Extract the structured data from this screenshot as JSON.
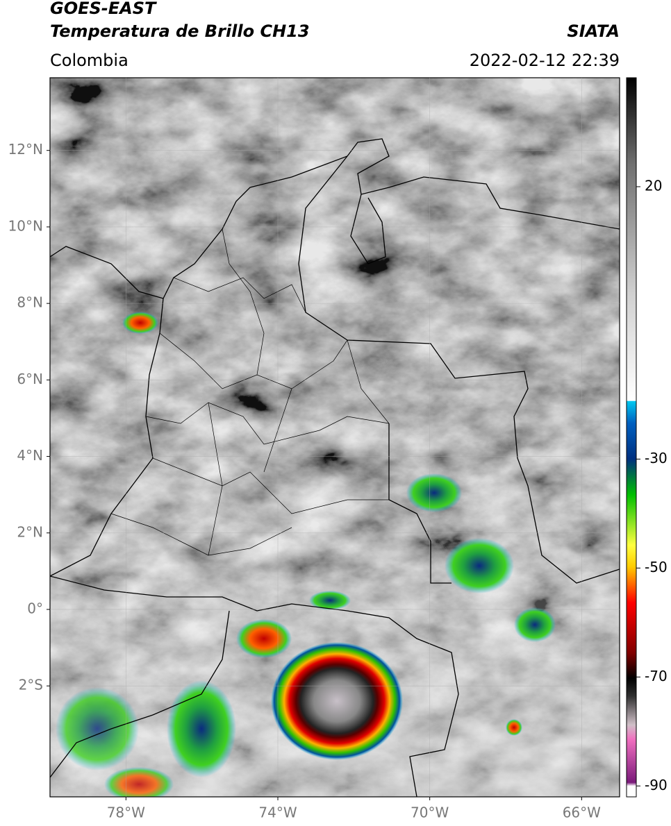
{
  "header": {
    "title": "GOES-EAST",
    "subtitle": "Temperatura de Brillo CH13",
    "region": "Colombia",
    "source": "SIATA",
    "datetime": "2022-02-12 22:39"
  },
  "map": {
    "lonlim": [
      -80,
      -65
    ],
    "latlim": [
      -4.9,
      13.9
    ],
    "lat_ticks": [
      {
        "value": 12,
        "label": "12°N"
      },
      {
        "value": 10,
        "label": "10°N"
      },
      {
        "value": 8,
        "label": "8°N"
      },
      {
        "value": 6,
        "label": "6°N"
      },
      {
        "value": 4,
        "label": "4°N"
      },
      {
        "value": 2,
        "label": "2°N"
      },
      {
        "value": 0,
        "label": "0°"
      },
      {
        "value": -2,
        "label": "2°S"
      }
    ],
    "lon_ticks": [
      {
        "value": -78,
        "label": "78°W"
      },
      {
        "value": -74,
        "label": "74°W"
      },
      {
        "value": -70,
        "label": "70°W"
      },
      {
        "value": -66,
        "label": "66°W"
      }
    ],
    "grid": true
  },
  "colorbar": {
    "lim": [
      -92,
      40
    ],
    "ticks": [
      20,
      -30,
      -50,
      -70,
      -90
    ]
  }
}
